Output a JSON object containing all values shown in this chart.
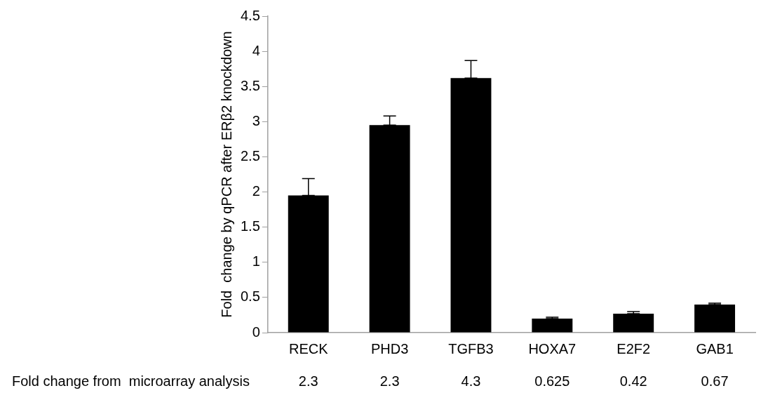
{
  "chart_data": {
    "type": "bar",
    "ylabel": "Fold  change by qPCR after ERβ2 knockdown",
    "categories": [
      "RECK",
      "PHD3",
      "TGFB3",
      "HOXA7",
      "E2F2",
      "GAB1"
    ],
    "values": [
      1.95,
      2.95,
      3.62,
      0.2,
      0.27,
      0.4
    ],
    "errors": [
      [
        1.95,
        2.19
      ],
      [
        2.95,
        3.08
      ],
      [
        3.62,
        3.87
      ],
      [
        0.2,
        0.22
      ],
      [
        0.27,
        0.3
      ],
      [
        0.4,
        0.42
      ]
    ],
    "color": "#000000",
    "ylim": [
      0,
      4.5
    ],
    "yticks": [
      0,
      0.5,
      1,
      1.5,
      2,
      2.5,
      3,
      3.5,
      4,
      4.5
    ],
    "grid": false,
    "legend": false,
    "annotations": [
      "Fold change from  microarray analysis",
      "2.3",
      "2.3",
      "4.3",
      "0.625",
      "0.42",
      "0.67"
    ]
  }
}
